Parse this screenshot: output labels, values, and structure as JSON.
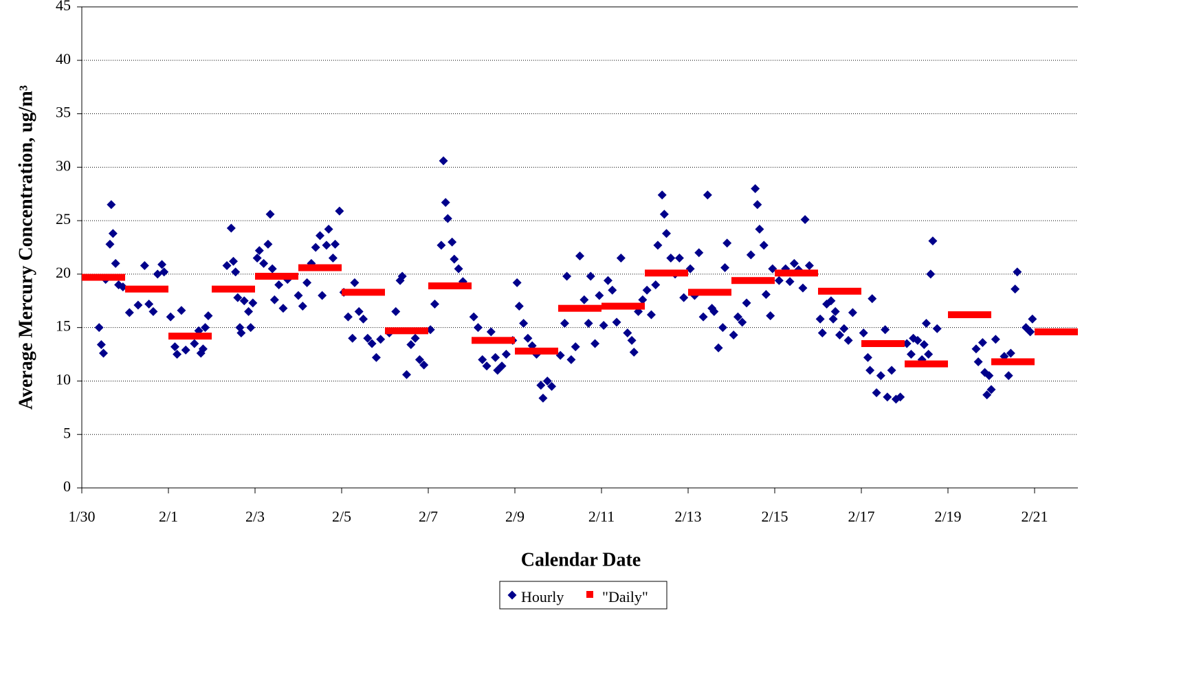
{
  "chart_data": {
    "type": "scatter",
    "xlabel": "Calendar Date",
    "ylabel": "Average Mercury Concentration, ug/m³",
    "xlim": [
      0,
      23
    ],
    "ylim": [
      0,
      45
    ],
    "xticks": [
      {
        "value": 0,
        "label": "1/30"
      },
      {
        "value": 2,
        "label": "2/1"
      },
      {
        "value": 4,
        "label": "2/3"
      },
      {
        "value": 6,
        "label": "2/5"
      },
      {
        "value": 8,
        "label": "2/7"
      },
      {
        "value": 10,
        "label": "2/9"
      },
      {
        "value": 12,
        "label": "2/11"
      },
      {
        "value": 14,
        "label": "2/13"
      },
      {
        "value": 16,
        "label": "2/15"
      },
      {
        "value": 18,
        "label": "2/17"
      },
      {
        "value": 20,
        "label": "2/19"
      },
      {
        "value": 22,
        "label": "2/21"
      }
    ],
    "yticks": [
      0,
      5,
      10,
      15,
      20,
      25,
      30,
      35,
      40,
      45
    ],
    "grid": true,
    "legend": "bottom",
    "series": [
      {
        "name": "Hourly",
        "color": "#00008b",
        "x": [
          0.4,
          0.45,
          0.5,
          0.55,
          0.65,
          0.68,
          0.72,
          0.78,
          0.85,
          0.95,
          1.1,
          1.3,
          1.45,
          1.55,
          1.65,
          1.75,
          1.85,
          1.9,
          2.05,
          2.15,
          2.2,
          2.3,
          2.4,
          2.6,
          2.7,
          2.75,
          2.8,
          2.85,
          2.92,
          3.35,
          3.45,
          3.5,
          3.55,
          3.6,
          3.65,
          3.68,
          3.75,
          3.85,
          3.9,
          3.95,
          4.05,
          4.1,
          4.2,
          4.3,
          4.35,
          4.4,
          4.45,
          4.55,
          4.65,
          4.75,
          5.0,
          5.1,
          5.2,
          5.3,
          5.4,
          5.5,
          5.55,
          5.65,
          5.7,
          5.8,
          5.85,
          5.95,
          6.05,
          6.15,
          6.25,
          6.3,
          6.4,
          6.5,
          6.6,
          6.7,
          6.8,
          6.9,
          7.1,
          7.25,
          7.35,
          7.4,
          7.5,
          7.6,
          7.7,
          7.8,
          7.9,
          8.05,
          8.15,
          8.3,
          8.35,
          8.4,
          8.45,
          8.55,
          8.6,
          8.7,
          8.8,
          9.05,
          9.15,
          9.25,
          9.35,
          9.45,
          9.55,
          9.6,
          9.7,
          9.8,
          9.95,
          10.05,
          10.1,
          10.2,
          10.3,
          10.4,
          10.5,
          10.6,
          10.65,
          10.75,
          10.85,
          11.05,
          11.15,
          11.2,
          11.3,
          11.4,
          11.5,
          11.6,
          11.7,
          11.75,
          11.85,
          11.95,
          12.05,
          12.15,
          12.25,
          12.35,
          12.45,
          12.6,
          12.7,
          12.75,
          12.85,
          12.95,
          13.05,
          13.15,
          13.25,
          13.3,
          13.4,
          13.45,
          13.5,
          13.6,
          13.7,
          13.8,
          13.9,
          14.05,
          14.15,
          14.25,
          14.35,
          14.45,
          14.55,
          14.6,
          14.7,
          14.8,
          14.85,
          14.9,
          15.05,
          15.15,
          15.25,
          15.35,
          15.45,
          15.55,
          15.6,
          15.65,
          15.75,
          15.8,
          15.9,
          15.95,
          16.1,
          16.25,
          16.35,
          16.45,
          16.55,
          16.65,
          16.7,
          16.8,
          17.05,
          17.1,
          17.2,
          17.3,
          17.35,
          17.4,
          17.5,
          17.6,
          17.7,
          17.8,
          18.05,
          18.15,
          18.2,
          18.25,
          18.35,
          18.45,
          18.55,
          18.6,
          18.7,
          18.8,
          18.9,
          19.05,
          19.15,
          19.2,
          19.3,
          19.4,
          19.45,
          19.5,
          19.55,
          19.6,
          19.65,
          19.75,
          20.65,
          20.7,
          20.8,
          20.85,
          20.9,
          20.95,
          21.0,
          21.1,
          21.3,
          21.4,
          21.45,
          21.55,
          21.6,
          21.8,
          21.9,
          21.95
        ],
        "values": [
          15,
          13.4,
          12.6,
          19.5,
          22.8,
          26.5,
          23.8,
          21,
          19,
          18.8,
          16.4,
          17.1,
          20.8,
          17.2,
          16.5,
          20,
          20.9,
          20.2,
          16,
          13.2,
          12.5,
          16.6,
          12.9,
          13.5,
          14.7,
          12.6,
          13,
          15,
          16.1,
          20.8,
          24.3,
          21.2,
          20.2,
          17.8,
          15,
          14.5,
          17.5,
          16.5,
          15,
          17.3,
          21.5,
          22.2,
          21,
          22.8,
          25.6,
          20.5,
          17.6,
          19,
          16.8,
          19.5,
          18,
          17,
          19.2,
          21,
          22.5,
          23.6,
          18,
          22.7,
          24.2,
          21.5,
          22.8,
          25.9,
          18.3,
          16,
          14,
          19.2,
          16.5,
          15.8,
          14,
          13.5,
          12.2,
          13.9,
          14.5,
          16.5,
          19.4,
          19.8,
          10.6,
          13.4,
          14,
          12,
          11.5,
          14.8,
          17.2,
          22.7,
          30.6,
          26.7,
          25.2,
          23,
          21.4,
          20.5,
          19.3,
          16,
          15,
          12,
          11.4,
          14.6,
          12.2,
          11,
          11.4,
          12.5,
          13.8,
          19.2,
          17,
          15.4,
          14,
          13.3,
          12.5,
          9.6,
          8.4,
          10,
          9.5,
          12.4,
          15.4,
          19.8,
          12,
          13.2,
          21.7,
          17.6,
          15.4,
          19.8,
          13.5,
          18,
          15.2,
          19.4,
          18.5,
          15.5,
          21.5,
          14.5,
          13.8,
          12.7,
          16.5,
          17.6,
          18.5,
          16.2,
          19,
          22.7,
          27.4,
          25.6,
          23.8,
          21.5,
          20,
          21.5,
          17.8,
          20.5,
          18,
          22,
          16,
          27.4,
          16.8,
          16.5,
          13.1,
          15,
          20.6,
          22.9,
          14.3,
          16,
          15.5,
          17.3,
          21.8,
          28,
          26.5,
          24.2,
          22.7,
          18.1,
          16.1,
          20.5,
          19.4,
          20.5,
          19.3,
          21,
          20.4,
          18.7,
          25.1,
          20.8,
          15.8,
          14.5,
          17.2,
          17.5,
          15.8,
          16.5,
          14.3,
          14.9,
          13.8,
          16.4,
          14.5,
          12.2,
          11,
          17.7,
          8.9,
          10.5,
          14.8,
          8.5,
          11,
          8.3,
          8.5,
          13.5,
          12.5,
          14,
          13.8,
          12,
          13.4,
          15.4,
          12.5,
          20,
          23.1,
          14.9,
          13,
          11.8,
          13.6,
          10.8,
          8.7,
          10.5,
          9.2,
          13.9,
          12.3,
          10.5,
          12.6,
          18.6,
          20.2,
          15,
          14.6,
          15.8
        ]
      },
      {
        "name": "\"Daily\"",
        "color": "#ff0000",
        "x": [
          0,
          1,
          2,
          3,
          4,
          5,
          6,
          7,
          8,
          9,
          10,
          11,
          12,
          13,
          14,
          15,
          16,
          17,
          18,
          19,
          20,
          21,
          22
        ],
        "values": [
          19.7,
          18.6,
          14.2,
          18.6,
          19.8,
          20.6,
          18.3,
          14.7,
          18.9,
          13.8,
          12.8,
          16.8,
          17.0,
          20.1,
          18.3,
          19.4,
          20.1,
          18.4,
          13.5,
          11.6,
          16.2,
          11.8,
          14.6
        ]
      }
    ]
  }
}
